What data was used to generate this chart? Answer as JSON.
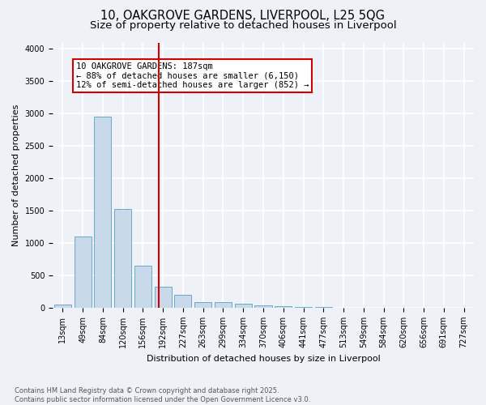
{
  "title_line1": "10, OAKGROVE GARDENS, LIVERPOOL, L25 5QG",
  "title_line2": "Size of property relative to detached houses in Liverpool",
  "xlabel": "Distribution of detached houses by size in Liverpool",
  "ylabel": "Number of detached properties",
  "categories": [
    "13sqm",
    "49sqm",
    "84sqm",
    "120sqm",
    "156sqm",
    "192sqm",
    "227sqm",
    "263sqm",
    "299sqm",
    "334sqm",
    "370sqm",
    "406sqm",
    "441sqm",
    "477sqm",
    "513sqm",
    "549sqm",
    "584sqm",
    "620sqm",
    "656sqm",
    "691sqm",
    "727sqm"
  ],
  "values": [
    50,
    1100,
    2950,
    1530,
    650,
    330,
    200,
    90,
    90,
    65,
    35,
    20,
    10,
    8,
    3,
    2,
    1,
    1,
    0,
    0,
    0
  ],
  "bar_color": "#c8daea",
  "bar_edgecolor": "#5a9fc0",
  "vline_color": "#cc0000",
  "annotation_text": "10 OAKGROVE GARDENS: 187sqm\n← 88% of detached houses are smaller (6,150)\n12% of semi-detached houses are larger (852) →",
  "annotation_box_color": "#cc0000",
  "ylim": [
    0,
    4100
  ],
  "yticks": [
    0,
    500,
    1000,
    1500,
    2000,
    2500,
    3000,
    3500,
    4000
  ],
  "background_color": "#eef2f8",
  "grid_color": "#ffffff",
  "footnote": "Contains HM Land Registry data © Crown copyright and database right 2025.\nContains public sector information licensed under the Open Government Licence v3.0.",
  "title_fontsize": 10.5,
  "subtitle_fontsize": 9.5,
  "label_fontsize": 8,
  "tick_fontsize": 7,
  "footnote_fontsize": 6,
  "annot_fontsize": 7.5
}
